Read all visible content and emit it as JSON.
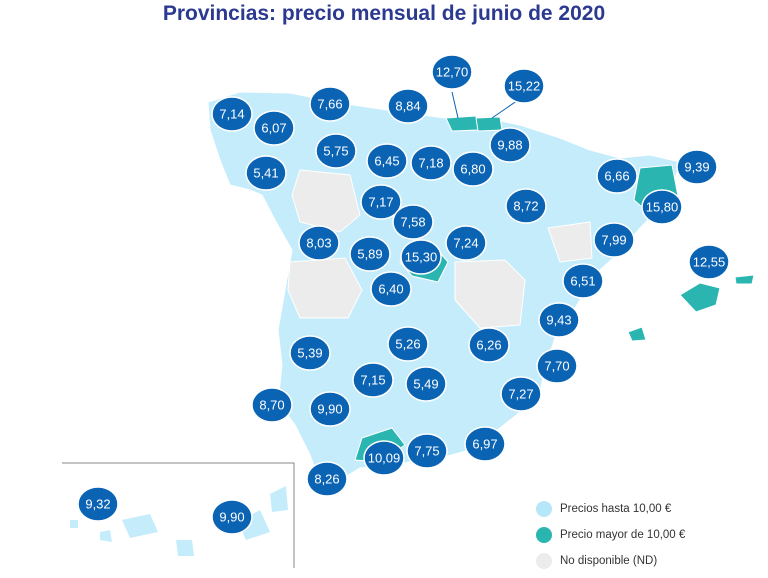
{
  "title": "Provincias: precio mensual de junio de 2020",
  "colors": {
    "base": "#c5ecfb",
    "high": "#2bb5b1",
    "nd": "#ececec",
    "bubble": "#0b63b4",
    "border": "#ffffff"
  },
  "legend": [
    {
      "label": "Precios hasta 10,00 €",
      "category": "base",
      "color": "#b5e7f8"
    },
    {
      "label": "Precio mayor de 10,00 €",
      "category": "high",
      "color": "#2bb5b1"
    },
    {
      "label": "No disponible (ND)",
      "category": "nd",
      "color": "#ececec"
    }
  ],
  "prices": [
    "7,14",
    "6,07",
    "7,66",
    "8,84",
    "12,70",
    "15,22",
    "5,75",
    "6,45",
    "7,18",
    "6,80",
    "9,88",
    "5,41",
    "7,17",
    "8,72",
    "6,66",
    "9,39",
    "15,80",
    "7,58",
    "8,03",
    "5,89",
    "15,30",
    "7,24",
    "7,99",
    "12,55",
    "6,40",
    "6,51",
    "9,43",
    "5,26",
    "6,26",
    "5,39",
    "7,70",
    "7,15",
    "5,49",
    "7,27",
    "8,70",
    "9,90",
    "6,97",
    "10,09",
    "7,75",
    "8,26",
    "9,32",
    "9,90"
  ]
}
